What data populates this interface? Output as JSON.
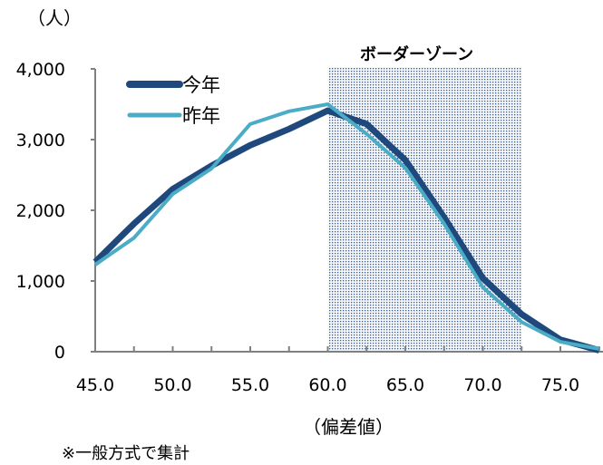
{
  "chart_data": {
    "type": "line",
    "ylabel": "（人）",
    "xlabel": "（偏差値）",
    "footnote": "※一般方式で集計",
    "x": [
      45.0,
      47.5,
      50.0,
      52.5,
      55.0,
      57.5,
      60.0,
      62.5,
      65.0,
      67.5,
      70.0,
      72.5,
      75.0,
      77.5
    ],
    "x_tick_labels": [
      "45.0",
      "50.0",
      "55.0",
      "60.0",
      "65.0",
      "70.0",
      "75.0"
    ],
    "y_tick_labels": [
      "0",
      "1,000",
      "2,000",
      "3,000",
      "4,000"
    ],
    "xlim": [
      45,
      77.5
    ],
    "ylim": [
      0,
      4000
    ],
    "grid": false,
    "legend_position": "top-left",
    "series": [
      {
        "name": "今年",
        "color": "#1f497d",
        "values": [
          1270,
          1810,
          2300,
          2630,
          2920,
          3150,
          3410,
          3220,
          2710,
          1900,
          1040,
          530,
          170,
          20
        ]
      },
      {
        "name": "昨年",
        "color": "#4bacc6",
        "values": [
          1230,
          1610,
          2230,
          2590,
          3220,
          3400,
          3500,
          3080,
          2600,
          1810,
          910,
          420,
          140,
          40
        ]
      }
    ],
    "annotations": [
      {
        "text": "ボーダーゾーン",
        "x_range": [
          60.0,
          72.5
        ]
      }
    ]
  }
}
